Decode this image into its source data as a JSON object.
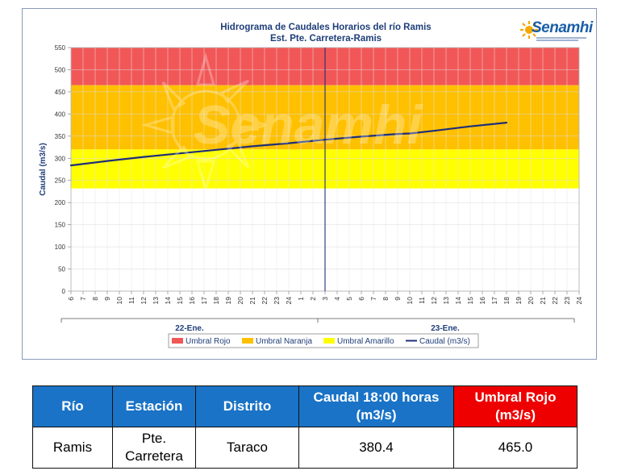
{
  "chart_data": {
    "type": "line",
    "title": "Hidrograma de Caudales Horarios del río Ramis",
    "subtitle": "Est. Pte. Carretera-Ramis",
    "ylabel": "Caudal  (m3/s)",
    "ylim": [
      0,
      550
    ],
    "yticks": [
      0,
      50,
      100,
      150,
      200,
      250,
      300,
      350,
      400,
      450,
      500,
      550
    ],
    "hour_labels": [
      "6",
      "7",
      "8",
      "9",
      "10",
      "11",
      "12",
      "13",
      "14",
      "15",
      "16",
      "17",
      "18",
      "19",
      "20",
      "21",
      "22",
      "23",
      "24",
      "1",
      "2",
      "3",
      "4",
      "5",
      "6",
      "7",
      "8",
      "9",
      "10",
      "11",
      "12",
      "13",
      "14",
      "15",
      "16",
      "17",
      "18",
      "19",
      "20",
      "21",
      "22",
      "23",
      "24"
    ],
    "day_labels": [
      "22-Ene.",
      "23-Ene."
    ],
    "current_time_index": 21,
    "thresholds": [
      {
        "name": "Umbral Rojo",
        "from": 465,
        "to": 550,
        "color": "#f25757"
      },
      {
        "name": "Umbral Naranja",
        "from": 320,
        "to": 465,
        "color": "#ffc000"
      },
      {
        "name": "Umbral Amarillo",
        "from": 232,
        "to": 320,
        "color": "#ffff00"
      }
    ],
    "series": [
      {
        "name": "Caudal (m3/s)",
        "color": "#1f2f78",
        "x_index": [
          0,
          3,
          6,
          9,
          12,
          15,
          18,
          21,
          24,
          27,
          28,
          30,
          33,
          36
        ],
        "values": [
          284,
          294,
          303,
          311,
          319,
          327,
          334,
          342,
          349,
          355,
          356,
          362,
          372,
          380.4
        ]
      }
    ],
    "legend": [
      "Umbral Rojo",
      "Umbral Naranja",
      "Umbral Amarillo",
      "Caudal (m3/s)"
    ],
    "legend_position": "bottom"
  },
  "logo": {
    "text": "Senamhi"
  },
  "watermark": {
    "text": "Senamhi"
  },
  "table": {
    "headers": [
      "Río",
      "Estación",
      "Distrito",
      "Caudal 18:00 horas (m3/s)",
      "Umbral Rojo (m3/s)"
    ],
    "row": [
      "Ramis",
      "Pte. Carretera",
      "Taraco",
      "380.4",
      "465.0"
    ]
  }
}
